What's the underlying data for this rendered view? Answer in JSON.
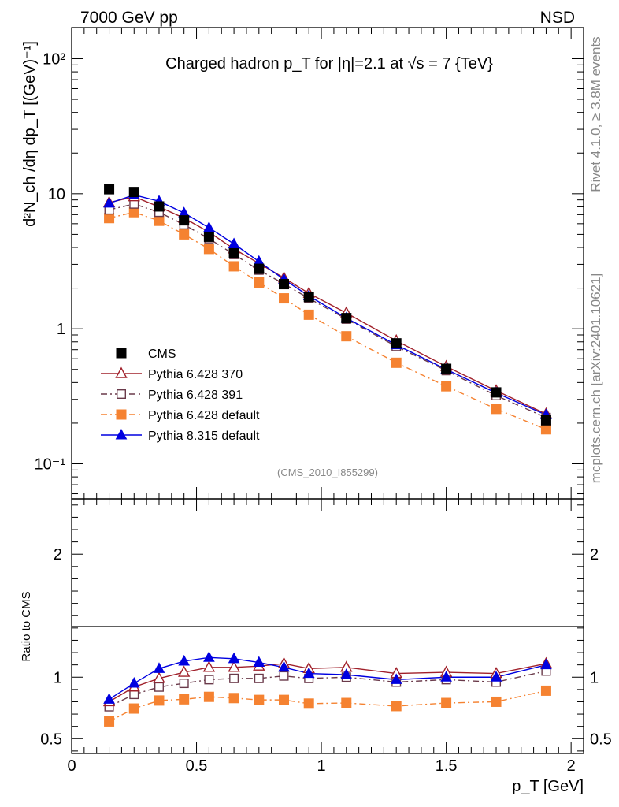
{
  "header": {
    "left": "7000 GeV pp",
    "right": "NSD"
  },
  "side": {
    "rivet": "Rivet 4.1.0, ≥ 3.8M events",
    "mcplots": "mcplots.cern.ch [arXiv:2401.10621]"
  },
  "colors": {
    "cms": "#000000",
    "p370": "#a0202a",
    "p391": "#6a3a4a",
    "p6def": "#f58231",
    "p8def": "#0000e0"
  },
  "chart_data": [
    {
      "type": "line",
      "title": "Charged hadron p_T for |η|=2.1 at √s = 7 {TeV}",
      "xlabel": "",
      "ylabel": "d²N_ch /dη dp_T [(GeV)⁻¹]",
      "yscale": "log",
      "xlim": [
        0,
        2.05
      ],
      "ylim": [
        0.055,
        170
      ],
      "analysis": "(CMS_2010_I855299)",
      "ytick_labels": [
        "10⁻¹",
        "1",
        "10",
        "10²"
      ],
      "x": [
        0.15,
        0.25,
        0.35,
        0.45,
        0.55,
        0.65,
        0.75,
        0.85,
        0.95,
        1.1,
        1.3,
        1.5,
        1.7,
        1.9
      ],
      "series": [
        {
          "name": "CMS",
          "key": "cms",
          "marker": "square-filled",
          "style": "none",
          "values": [
            10.8,
            10.3,
            8.05,
            6.35,
            4.8,
            3.62,
            2.78,
            2.14,
            1.72,
            1.2,
            0.78,
            0.505,
            0.338,
            0.21
          ]
        },
        {
          "name": "Pythia 6.428 370",
          "key": "p370",
          "marker": "triangle-open",
          "style": "solid",
          "values": [
            8.6,
            9.5,
            8.0,
            6.6,
            5.2,
            3.9,
            3.05,
            2.38,
            1.83,
            1.31,
            0.815,
            0.526,
            0.348,
            0.234
          ]
        },
        {
          "name": "Pythia 6.428 391",
          "key": "p391",
          "marker": "square-open",
          "style": "dashdot",
          "values": [
            7.6,
            8.4,
            7.3,
            5.9,
            4.65,
            3.55,
            2.72,
            2.15,
            1.68,
            1.18,
            0.74,
            0.49,
            0.32,
            0.22
          ]
        },
        {
          "name": "Pythia 6.428 default",
          "key": "p6def",
          "marker": "square-filled",
          "style": "dashdot",
          "values": [
            6.6,
            7.3,
            6.3,
            5.0,
            3.9,
            2.9,
            2.2,
            1.68,
            1.27,
            0.88,
            0.56,
            0.375,
            0.255,
            0.18
          ]
        },
        {
          "name": "Pythia 8.315 default",
          "key": "p8def",
          "marker": "triangle-filled",
          "style": "solid",
          "values": [
            8.5,
            9.8,
            8.8,
            7.2,
            5.6,
            4.25,
            3.15,
            2.32,
            1.75,
            1.2,
            0.76,
            0.5,
            0.335,
            0.23
          ]
        }
      ]
    },
    {
      "type": "line",
      "title": "",
      "xlabel": "p_T [GeV]",
      "ylabel": "Ratio to CMS",
      "xlim": [
        0,
        2.05
      ],
      "ylim": [
        0.38,
        2.45
      ],
      "xtick_labels": [
        "0",
        "0.5",
        "1",
        "1.5",
        "2"
      ],
      "ytick_labels": [
        "0.5",
        "1",
        "2"
      ],
      "x": [
        0.15,
        0.25,
        0.35,
        0.45,
        0.55,
        0.65,
        0.75,
        0.85,
        0.95,
        1.1,
        1.3,
        1.5,
        1.7,
        1.9
      ],
      "series": [
        {
          "name": "Pythia 6.428 370",
          "key": "p370",
          "marker": "triangle-open",
          "style": "solid",
          "values": [
            0.8,
            0.92,
            0.99,
            1.04,
            1.08,
            1.08,
            1.09,
            1.11,
            1.07,
            1.08,
            1.03,
            1.04,
            1.03,
            1.11
          ]
        },
        {
          "name": "Pythia 6.428 391",
          "key": "p391",
          "marker": "square-open",
          "style": "dashdot",
          "values": [
            0.76,
            0.86,
            0.92,
            0.95,
            0.98,
            0.99,
            0.99,
            1.01,
            0.99,
            1.0,
            0.96,
            0.98,
            0.96,
            1.05
          ]
        },
        {
          "name": "Pythia 6.428 default",
          "key": "p6def",
          "marker": "square-filled",
          "style": "dashdot",
          "values": [
            0.64,
            0.745,
            0.81,
            0.82,
            0.84,
            0.83,
            0.815,
            0.815,
            0.785,
            0.79,
            0.765,
            0.79,
            0.8,
            0.89
          ]
        },
        {
          "name": "Pythia 8.315 default",
          "key": "p8def",
          "marker": "triangle-filled",
          "style": "solid",
          "values": [
            0.82,
            0.95,
            1.07,
            1.13,
            1.16,
            1.15,
            1.12,
            1.08,
            1.03,
            1.02,
            0.98,
            1.0,
            1.0,
            1.1
          ]
        }
      ]
    }
  ]
}
